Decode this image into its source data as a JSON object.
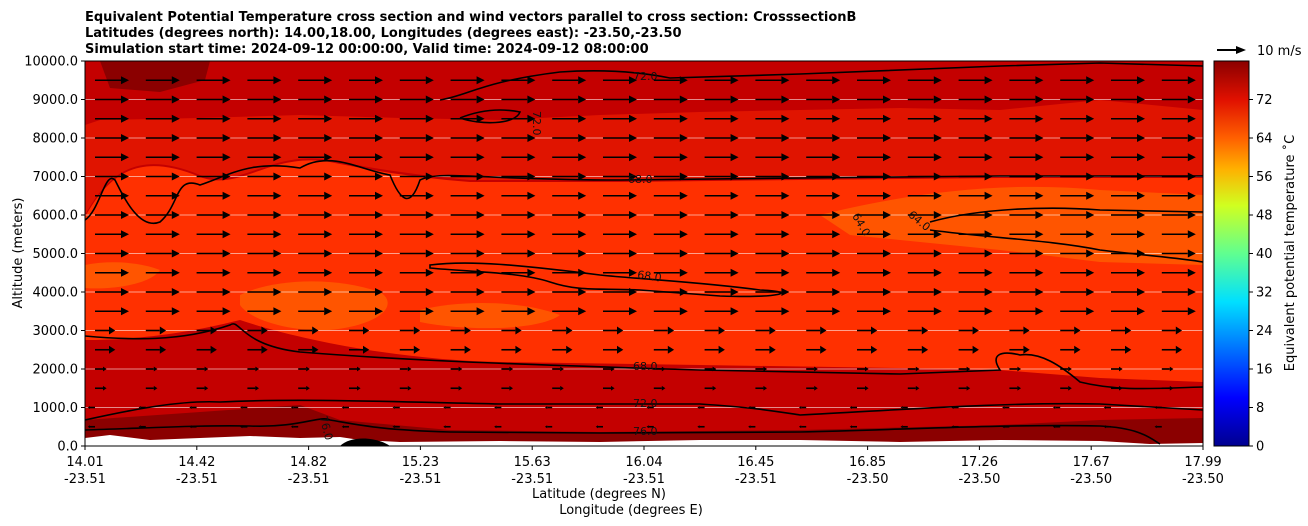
{
  "chart_data": {
    "type": "contourf-cross-section",
    "title_lines": [
      "Equivalent Potential Temperature cross section and wind vectors parallel to cross section: CrosssectionB",
      "Latitudes (degrees north): 14.00,18.00, Longitudes (degrees east): -23.50,-23.50",
      "Simulation start time: 2024-09-12 00:00:00, Valid time: 2024-09-12 08:00:00"
    ],
    "ylabel": "Altitude (meters)",
    "xlabel_lat": "Latitude (degrees N)",
    "xlabel_lon": "Longitude (degrees E)",
    "ylim": [
      0,
      10000
    ],
    "y_ticks": [
      0,
      1000,
      2000,
      3000,
      4000,
      5000,
      6000,
      7000,
      8000,
      9000,
      10000
    ],
    "y_tick_labels": [
      "0.0",
      "1000.0",
      "2000.0",
      "3000.0",
      "4000.0",
      "5000.0",
      "6000.0",
      "7000.0",
      "8000.0",
      "9000.0",
      "10000.0"
    ],
    "x_ticks": [
      {
        "lat": "14.01",
        "lon": "-23.51"
      },
      {
        "lat": "14.42",
        "lon": "-23.51"
      },
      {
        "lat": "14.82",
        "lon": "-23.51"
      },
      {
        "lat": "15.23",
        "lon": "-23.51"
      },
      {
        "lat": "15.63",
        "lon": "-23.51"
      },
      {
        "lat": "16.04",
        "lon": "-23.51"
      },
      {
        "lat": "16.45",
        "lon": "-23.51"
      },
      {
        "lat": "16.85",
        "lon": "-23.50"
      },
      {
        "lat": "17.26",
        "lon": "-23.50"
      },
      {
        "lat": "17.67",
        "lon": "-23.50"
      },
      {
        "lat": "17.99",
        "lon": "-23.50"
      }
    ],
    "colorbar": {
      "label": "Equivalent potential temperature ˚C",
      "range": [
        0,
        80
      ],
      "ticks": [
        0,
        8,
        16,
        24,
        32,
        40,
        48,
        56,
        64,
        72
      ],
      "tick_labels": [
        "0",
        "8",
        "16",
        "24",
        "32",
        "40",
        "48",
        "56",
        "64",
        "72"
      ]
    },
    "contour_labels": [
      "72.0",
      "72.0",
      "68.0",
      "64.0",
      "64.0",
      "68.0",
      "68.0",
      "72.0",
      "76.0",
      "76.0"
    ],
    "quiver_key": "10 m/s"
  },
  "colors": {
    "band_76_80": "#8b0000",
    "band_72_76": "#c40000",
    "band_68_72": "#e01400",
    "band_64_68": "#ff3000",
    "band_60_64": "#ff5500",
    "terrain": "#ffffff"
  }
}
